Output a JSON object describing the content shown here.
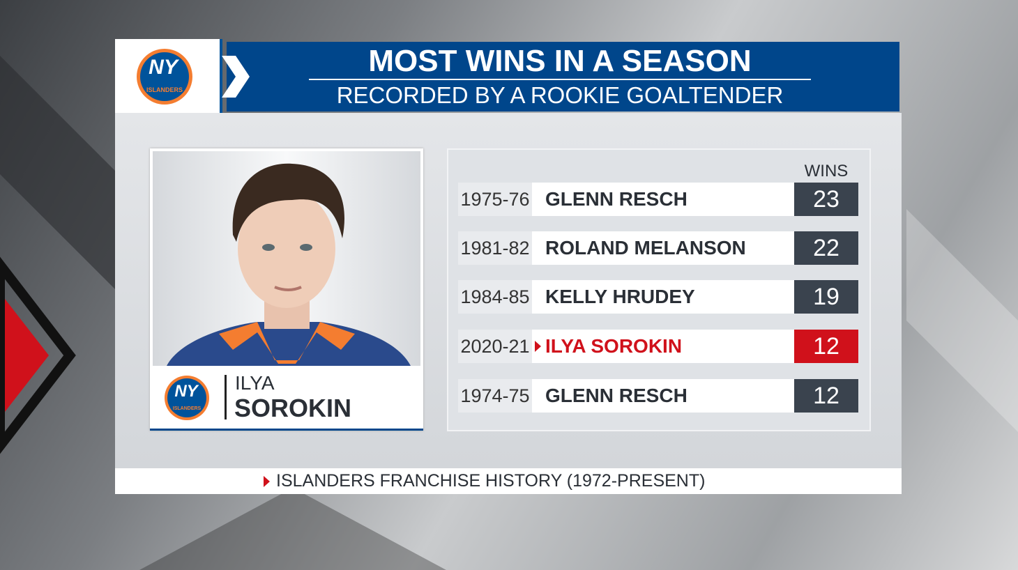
{
  "header": {
    "title": "MOST WINS IN A SEASON",
    "subtitle": "RECORDED BY A ROOKIE GOALTENDER"
  },
  "logo": {
    "monogram": "NY",
    "wordmark": "ISLANDERS"
  },
  "player": {
    "first_name": "ILYA",
    "last_name": "SOROKIN"
  },
  "table": {
    "column_header": "WINS",
    "rows": [
      {
        "season": "1975-76",
        "name": "GLENN RESCH",
        "wins": 23
      },
      {
        "season": "1981-82",
        "name": "ROLAND MELANSON",
        "wins": 22
      },
      {
        "season": "1984-85",
        "name": "KELLY HRUDEY",
        "wins": 19
      },
      {
        "season": "2020-21",
        "name": "ILYA SOROKIN",
        "wins": 12,
        "highlight": true
      },
      {
        "season": "1974-75",
        "name": "GLENN RESCH",
        "wins": 12
      }
    ]
  },
  "footer": "ISLANDERS FRANCHISE HISTORY (1972-PRESENT)"
}
